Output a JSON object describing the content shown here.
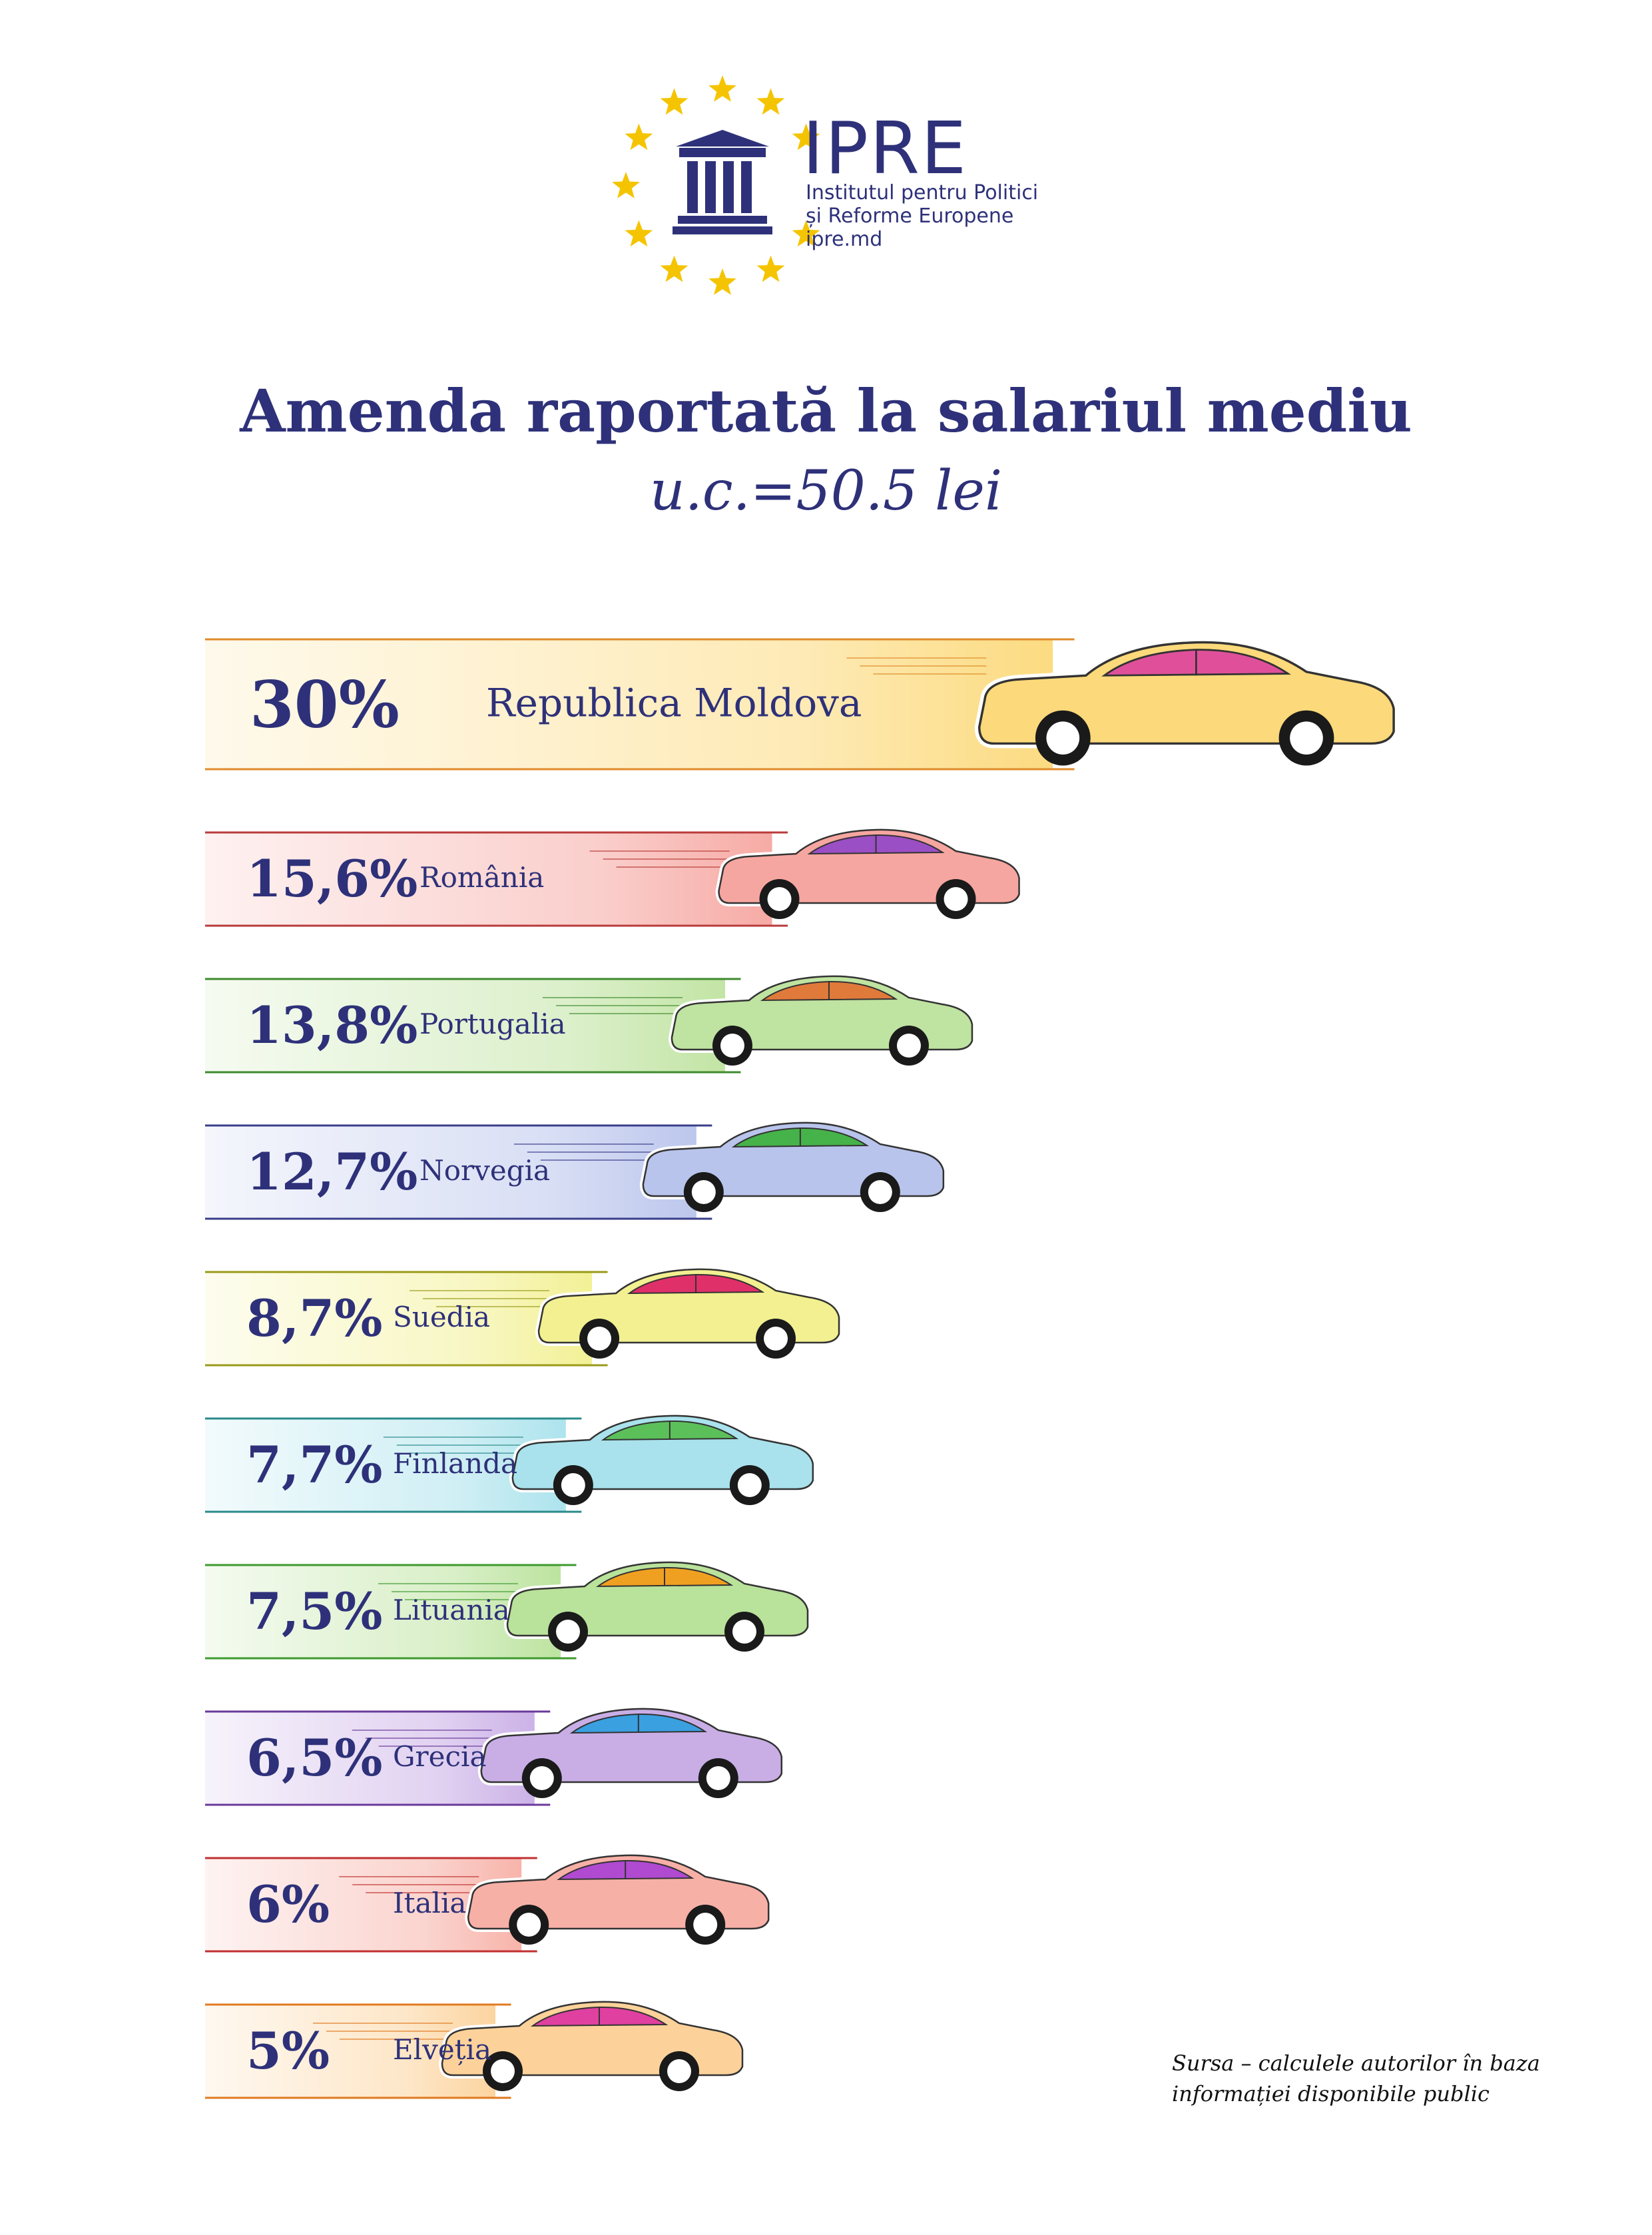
{
  "org": {
    "name": "IPRE",
    "line1": "Institutul pentru Politici",
    "line2": "și Reforme Europene",
    "line3": "ipre.md"
  },
  "colors": {
    "text": "#2e3179",
    "star": "#f5c400"
  },
  "chart_data": {
    "type": "bar",
    "title": "Amenda raportată la salariul mediu",
    "subtitle": "u.c.=50.5 lei",
    "categories": [
      "Republica Moldova",
      "România",
      "Portugalia",
      "Norvegia",
      "Suedia",
      "Finlanda",
      "Lituania",
      "Grecia",
      "Italia",
      "Elveția"
    ],
    "labels": [
      "30%",
      "15,6%",
      "13,8%",
      "12,7%",
      "8,7%",
      "7,7%",
      "7,5%",
      "6,5%",
      "6%",
      "5%"
    ],
    "values": [
      30,
      15.6,
      13.8,
      12.7,
      8.7,
      7.7,
      7.5,
      6.5,
      6,
      5
    ],
    "colors": [
      {
        "body": "#fcd97a",
        "roof": "#e0509a",
        "line": "#e08a2a"
      },
      {
        "body": "#f6a6a0",
        "roof": "#9b4fc4",
        "line": "#b93b3b"
      },
      {
        "body": "#bfe3a0",
        "roof": "#e07a3a",
        "line": "#3e8a2e"
      },
      {
        "body": "#b9c4ec",
        "roof": "#46b24a",
        "line": "#3a3e8a"
      },
      {
        "body": "#f2f090",
        "roof": "#e0306a",
        "line": "#9a9a1a"
      },
      {
        "body": "#a9e2ec",
        "roof": "#5cc05a",
        "line": "#2a8a8a"
      },
      {
        "body": "#b9e29a",
        "roof": "#f0a020",
        "line": "#3e9a2e"
      },
      {
        "body": "#c9aee6",
        "roof": "#3aa0e0",
        "line": "#6a3a9a"
      },
      {
        "body": "#f7b0a6",
        "roof": "#b04ad0",
        "line": "#c03030"
      },
      {
        "body": "#fcd29a",
        "roof": "#e040a0",
        "line": "#e07a20"
      }
    ]
  },
  "source": {
    "line1": "Sursa – calculele autorilor în baza",
    "line2": "informației disponibile public"
  }
}
